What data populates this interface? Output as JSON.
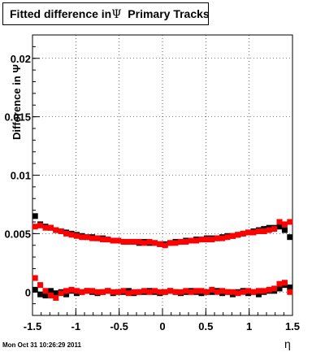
{
  "title": {
    "prefix": "Fitted difference in",
    "symbol": "Ψ",
    "suffix": "  Primary Tracks"
  },
  "ylabel": "Difference in Ψ",
  "xlabel": "η",
  "timestamp": "Mon Oct 31 10:26:29 2011",
  "chart_data": {
    "type": "scatter",
    "xlim": [
      -1.5,
      1.5
    ],
    "ylim": [
      -0.002,
      0.022
    ],
    "grid": true,
    "xticks": [
      "-1.5",
      "-1",
      "-0.5",
      "0",
      "0.5",
      "1",
      "1.5"
    ],
    "yticks": [
      "0",
      "0.005",
      "0.01",
      "0.015",
      "0.02"
    ],
    "series": [
      {
        "color": "#000000",
        "x": [
          -1.47,
          -1.41,
          -1.35,
          -1.29,
          -1.23,
          -1.17,
          -1.11,
          -1.05,
          -0.99,
          -0.93,
          -0.87,
          -0.81,
          -0.75,
          -0.69,
          -0.63,
          -0.57,
          -0.51,
          -0.45,
          -0.39,
          -0.33,
          -0.27,
          -0.21,
          -0.15,
          -0.09,
          -0.03,
          0.03,
          0.09,
          0.15,
          0.21,
          0.27,
          0.33,
          0.39,
          0.45,
          0.51,
          0.57,
          0.63,
          0.69,
          0.75,
          0.81,
          0.87,
          0.93,
          0.99,
          1.05,
          1.11,
          1.17,
          1.23,
          1.29,
          1.35,
          1.41,
          1.47
        ],
        "y": [
          0.0065,
          0.0058,
          0.0056,
          0.0055,
          0.0053,
          0.0052,
          0.0051,
          0.005,
          0.0049,
          0.0048,
          0.0047,
          0.0047,
          0.0046,
          0.0046,
          0.0045,
          0.0044,
          0.0044,
          0.0043,
          0.0043,
          0.0043,
          0.0042,
          0.0043,
          0.0042,
          0.0042,
          0.0041,
          0.0041,
          0.0042,
          0.0043,
          0.0043,
          0.0044,
          0.0044,
          0.0045,
          0.0045,
          0.0046,
          0.0046,
          0.0046,
          0.0047,
          0.0048,
          0.0048,
          0.0049,
          0.005,
          0.0051,
          0.0052,
          0.0053,
          0.0054,
          0.0055,
          0.0055,
          0.0056,
          0.0053,
          0.0047
        ]
      },
      {
        "color": "#ff0000",
        "x": [
          -1.47,
          -1.41,
          -1.35,
          -1.29,
          -1.23,
          -1.17,
          -1.11,
          -1.05,
          -0.99,
          -0.93,
          -0.87,
          -0.81,
          -0.75,
          -0.69,
          -0.63,
          -0.57,
          -0.51,
          -0.45,
          -0.39,
          -0.33,
          -0.27,
          -0.21,
          -0.15,
          -0.09,
          -0.03,
          0.03,
          0.09,
          0.15,
          0.21,
          0.27,
          0.33,
          0.39,
          0.45,
          0.51,
          0.57,
          0.63,
          0.69,
          0.75,
          0.81,
          0.87,
          0.93,
          0.99,
          1.05,
          1.11,
          1.17,
          1.23,
          1.29,
          1.35,
          1.41,
          1.47
        ],
        "y": [
          0.0056,
          0.0057,
          0.0055,
          0.0055,
          0.0053,
          0.0052,
          0.005,
          0.0049,
          0.0048,
          0.0047,
          0.0047,
          0.0046,
          0.0046,
          0.0045,
          0.0045,
          0.0044,
          0.0044,
          0.0043,
          0.0043,
          0.0043,
          0.0043,
          0.0042,
          0.0043,
          0.0042,
          0.0041,
          0.004,
          0.0042,
          0.0042,
          0.0043,
          0.0043,
          0.0044,
          0.0044,
          0.0045,
          0.0045,
          0.0045,
          0.0046,
          0.0046,
          0.0047,
          0.0048,
          0.0049,
          0.005,
          0.0051,
          0.0051,
          0.0052,
          0.0052,
          0.0053,
          0.0054,
          0.006,
          0.0058,
          0.006
        ]
      },
      {
        "color": "#000000",
        "x": [
          -1.47,
          -1.41,
          -1.35,
          -1.29,
          -1.23,
          -1.17,
          -1.11,
          -1.05,
          -0.99,
          -0.93,
          -0.87,
          -0.81,
          -0.75,
          -0.69,
          -0.63,
          -0.57,
          -0.51,
          -0.45,
          -0.39,
          -0.33,
          -0.27,
          -0.21,
          -0.15,
          -0.09,
          -0.03,
          0.03,
          0.09,
          0.15,
          0.21,
          0.27,
          0.33,
          0.39,
          0.45,
          0.51,
          0.57,
          0.63,
          0.69,
          0.75,
          0.81,
          0.87,
          0.93,
          0.99,
          1.05,
          1.11,
          1.17,
          1.23,
          1.29,
          1.35,
          1.41,
          1.47
        ],
        "y": [
          0.0002,
          -0.0002,
          -0.0003,
          0.0001,
          -0.0001,
          0.0,
          -0.0002,
          0.0001,
          -0.0001,
          0.0,
          0.0001,
          0.0,
          -0.0001,
          0.0,
          0.0001,
          -0.0001,
          0.0,
          0.0,
          0.0001,
          -0.0001,
          0.0,
          0.0,
          0.0001,
          0.0,
          -0.0001,
          0.0,
          0.0001,
          0.0,
          -0.0001,
          0.0,
          0.0001,
          0.0,
          -0.0001,
          0.0,
          0.0,
          0.0001,
          -0.0001,
          0.0,
          -0.0002,
          0.0,
          0.0001,
          -0.0001,
          0.0,
          -0.0002,
          0.0,
          0.0001,
          0.0001,
          0.0003,
          0.0006,
          0.0004
        ]
      },
      {
        "color": "#ff0000",
        "x": [
          -1.47,
          -1.41,
          -1.35,
          -1.29,
          -1.23,
          -1.17,
          -1.11,
          -1.05,
          -0.99,
          -0.93,
          -0.87,
          -0.81,
          -0.75,
          -0.69,
          -0.63,
          -0.57,
          -0.51,
          -0.45,
          -0.39,
          -0.33,
          -0.27,
          -0.21,
          -0.15,
          -0.09,
          -0.03,
          0.03,
          0.09,
          0.15,
          0.21,
          0.27,
          0.33,
          0.39,
          0.45,
          0.51,
          0.57,
          0.63,
          0.69,
          0.75,
          0.81,
          0.87,
          0.93,
          0.99,
          1.05,
          1.11,
          1.17,
          1.23,
          1.29,
          1.35,
          1.41,
          1.47
        ],
        "y": [
          0.0012,
          0.0006,
          0.0001,
          -0.0003,
          -0.0005,
          -0.0001,
          0.0001,
          0.0002,
          0.0001,
          0.0,
          0.0001,
          0.0001,
          0.0,
          0.0,
          0.0001,
          0.0,
          0.0,
          0.0001,
          -0.0001,
          0.0,
          0.0,
          0.0001,
          0.0,
          0.0001,
          0.0,
          0.0,
          0.0001,
          0.0,
          0.0,
          0.0001,
          0.0,
          0.0001,
          0.0001,
          0.0,
          0.0002,
          0.0,
          0.0001,
          0.0,
          0.0,
          -0.0001,
          0.0,
          0.0001,
          0.0,
          0.0001,
          0.0001,
          0.0002,
          0.0003,
          0.0007,
          0.0008,
          0.0
        ]
      }
    ]
  }
}
